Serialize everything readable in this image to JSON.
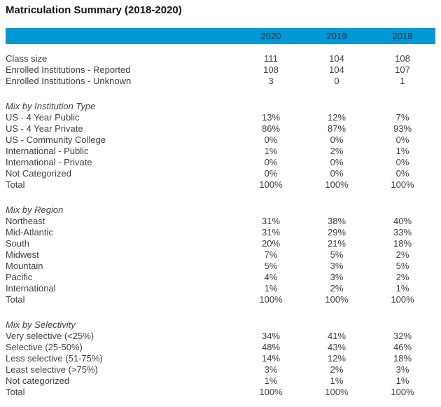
{
  "title": "Matriculation Summary (2018-2020)",
  "colors": {
    "header_bar_bg": "#0099d6",
    "header_text": "#1c2a33",
    "body_text": "#3f3f3f",
    "title_text": "#161616"
  },
  "table": {
    "year_columns": [
      "2020",
      "2019",
      "2018"
    ],
    "sections": [
      {
        "heading": "",
        "rows": [
          {
            "label": "Class size",
            "values": [
              "111",
              "104",
              "108"
            ]
          },
          {
            "label": "Enrolled Institutions - Reported",
            "values": [
              "108",
              "104",
              "107"
            ]
          },
          {
            "label": "Enrolled Institutions - Unknown",
            "values": [
              "3",
              "0",
              "1"
            ]
          }
        ]
      },
      {
        "heading": "Mix by Institution Type",
        "rows": [
          {
            "label": "US - 4 Year Public",
            "values": [
              "13%",
              "12%",
              "7%"
            ]
          },
          {
            "label": "US - 4 Year Private",
            "values": [
              "86%",
              "87%",
              "93%"
            ]
          },
          {
            "label": "US - Community College",
            "values": [
              "0%",
              "0%",
              "0%"
            ]
          },
          {
            "label": "International - Public",
            "values": [
              "1%",
              "2%",
              "1%"
            ]
          },
          {
            "label": "International - Private",
            "values": [
              "0%",
              "0%",
              "0%"
            ]
          },
          {
            "label": "Not Categorized",
            "values": [
              "0%",
              "0%",
              "0%"
            ]
          },
          {
            "label": "Total",
            "values": [
              "100%",
              "100%",
              "100%"
            ]
          }
        ]
      },
      {
        "heading": "Mix by Region",
        "rows": [
          {
            "label": "Northeast",
            "values": [
              "31%",
              "38%",
              "40%"
            ]
          },
          {
            "label": "Mid-Atlantic",
            "values": [
              "31%",
              "29%",
              "33%"
            ]
          },
          {
            "label": "South",
            "values": [
              "20%",
              "21%",
              "18%"
            ]
          },
          {
            "label": "Midwest",
            "values": [
              "7%",
              "5%",
              "2%"
            ]
          },
          {
            "label": "Mountain",
            "values": [
              "5%",
              "3%",
              "5%"
            ]
          },
          {
            "label": "Pacific",
            "values": [
              "4%",
              "3%",
              "2%"
            ]
          },
          {
            "label": "International",
            "values": [
              "1%",
              "2%",
              "1%"
            ]
          },
          {
            "label": "Total",
            "values": [
              "100%",
              "100%",
              "100%"
            ]
          }
        ]
      },
      {
        "heading": "Mix by Selectivity",
        "rows": [
          {
            "label": "Very selective (<25%)",
            "values": [
              "34%",
              "41%",
              "32%"
            ]
          },
          {
            "label": "Selective (25-50%)",
            "values": [
              "48%",
              "43%",
              "46%"
            ]
          },
          {
            "label": "Less selective (51-75%)",
            "values": [
              "14%",
              "12%",
              "18%"
            ]
          },
          {
            "label": "Least selective (>75%)",
            "values": [
              "3%",
              "2%",
              "3%"
            ]
          },
          {
            "label": "Not categorized",
            "values": [
              "1%",
              "1%",
              "1%"
            ]
          },
          {
            "label": "Total",
            "values": [
              "100%",
              "100%",
              "100%"
            ]
          }
        ]
      }
    ]
  }
}
